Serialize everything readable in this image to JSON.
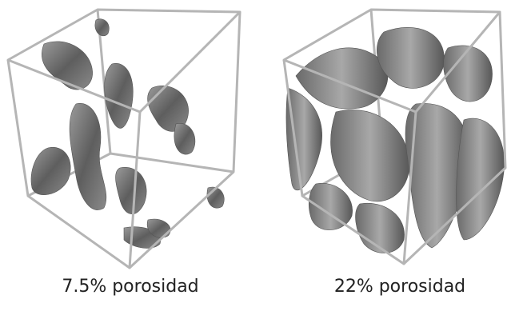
{
  "panels": [
    {
      "caption": "7.5% porosidad"
    },
    {
      "caption": "22% porosidad"
    }
  ]
}
